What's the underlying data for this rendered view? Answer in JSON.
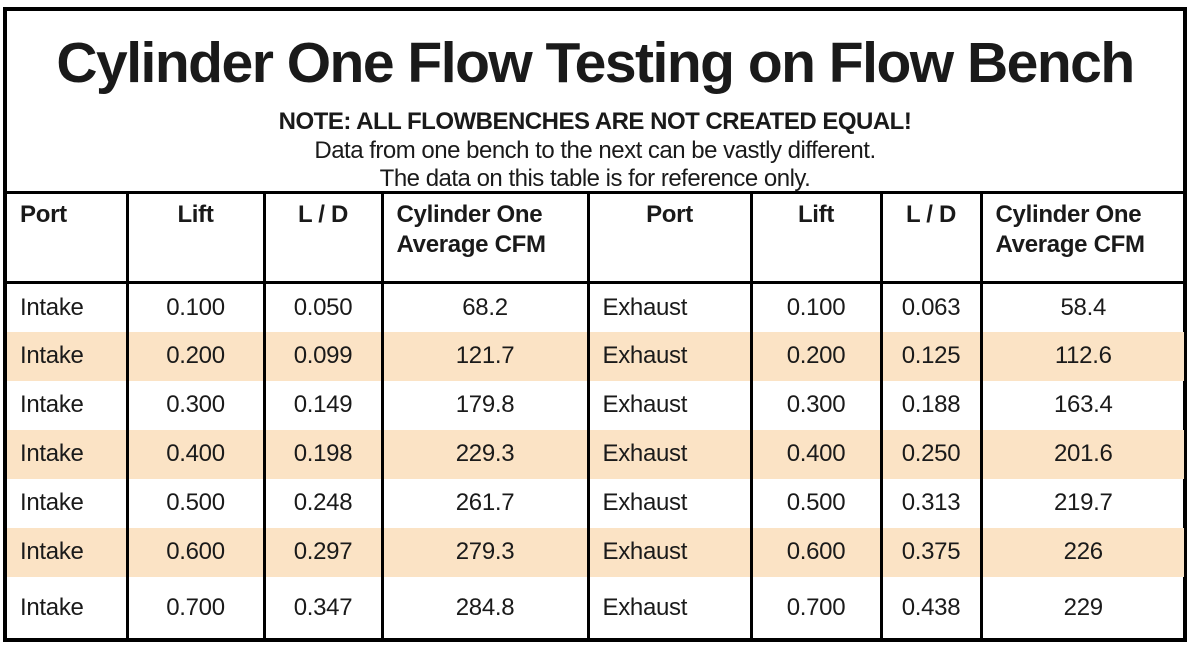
{
  "title": "Cylinder One Flow Testing on Flow Bench",
  "note": {
    "line1": "NOTE: ALL FLOWBENCHES ARE NOT CREATED EQUAL!",
    "line2": "Data from one bench to the next can be vastly different.",
    "line3": "The data on this table is for reference only."
  },
  "colors": {
    "stripe": "#FBE3C5",
    "border": "#000000",
    "background": "#FFFFFF"
  },
  "table": {
    "headers": [
      "Port",
      "Lift",
      "L / D",
      "Cylinder One Average CFM",
      "Port",
      "Lift",
      "L / D",
      "Cylinder One Average CFM"
    ],
    "rows": [
      [
        "Intake",
        "0.100",
        "0.050",
        "68.2",
        "Exhaust",
        "0.100",
        "0.063",
        "58.4"
      ],
      [
        "Intake",
        "0.200",
        "0.099",
        "121.7",
        "Exhaust",
        "0.200",
        "0.125",
        "112.6"
      ],
      [
        "Intake",
        "0.300",
        "0.149",
        "179.8",
        "Exhaust",
        "0.300",
        "0.188",
        "163.4"
      ],
      [
        "Intake",
        "0.400",
        "0.198",
        "229.3",
        "Exhaust",
        "0.400",
        "0.250",
        "201.6"
      ],
      [
        "Intake",
        "0.500",
        "0.248",
        "261.7",
        "Exhaust",
        "0.500",
        "0.313",
        "219.7"
      ],
      [
        "Intake",
        "0.600",
        "0.297",
        "279.3",
        "Exhaust",
        "0.600",
        "0.375",
        "226"
      ],
      [
        "Intake",
        "0.700",
        "0.347",
        "284.8",
        "Exhaust",
        "0.700",
        "0.438",
        "229"
      ]
    ]
  },
  "chart_data": {
    "type": "table",
    "title": "Cylinder One Flow Testing on Flow Bench",
    "columns": [
      "Port",
      "Lift",
      "L / D",
      "Cylinder One Average CFM"
    ],
    "series": [
      {
        "name": "Intake",
        "lift": [
          0.1,
          0.2,
          0.3,
          0.4,
          0.5,
          0.6,
          0.7
        ],
        "l_over_d": [
          0.05,
          0.099,
          0.149,
          0.198,
          0.248,
          0.297,
          0.347
        ],
        "average_cfm": [
          68.2,
          121.7,
          179.8,
          229.3,
          261.7,
          279.3,
          284.8
        ]
      },
      {
        "name": "Exhaust",
        "lift": [
          0.1,
          0.2,
          0.3,
          0.4,
          0.5,
          0.6,
          0.7
        ],
        "l_over_d": [
          0.063,
          0.125,
          0.188,
          0.25,
          0.313,
          0.375,
          0.438
        ],
        "average_cfm": [
          58.4,
          112.6,
          163.4,
          201.6,
          219.7,
          226,
          229
        ]
      }
    ]
  }
}
